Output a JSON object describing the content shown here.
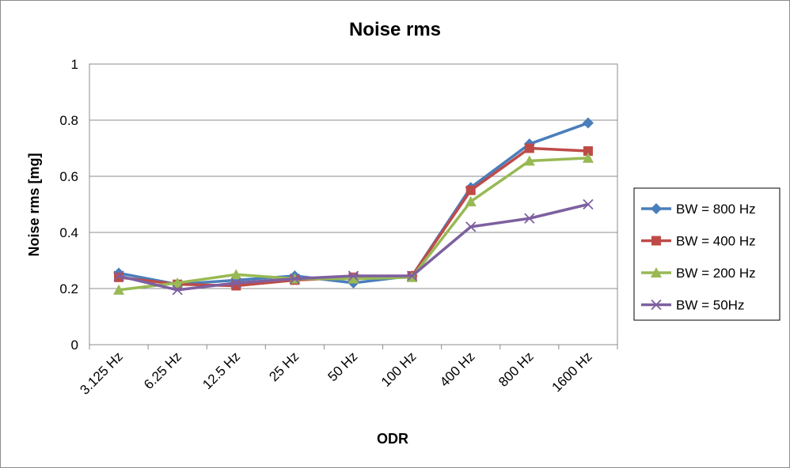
{
  "chart_data": {
    "type": "line",
    "title": "Noise rms",
    "xlabel": "ODR",
    "ylabel": "Noise rms [mg]",
    "ylim": [
      0,
      1
    ],
    "yticks": [
      "0",
      "0.2",
      "0.4",
      "0.6",
      "0.8",
      "1"
    ],
    "categories": [
      "3.125 Hz",
      "6.25 Hz",
      "12.5 Hz",
      "25 Hz",
      "50 Hz",
      "100 Hz",
      "400 Hz",
      "800 Hz",
      "1600 Hz"
    ],
    "grid": "horizontal",
    "legend_position": "right",
    "series": [
      {
        "name": "BW = 800 Hz",
        "color": "#4a7ebb",
        "marker": "diamond",
        "values": [
          0.255,
          0.215,
          0.23,
          0.245,
          0.22,
          0.245,
          0.56,
          0.715,
          0.79
        ]
      },
      {
        "name": "BW = 400 Hz",
        "color": "#be4b48",
        "marker": "square",
        "values": [
          0.24,
          0.215,
          0.21,
          0.23,
          0.24,
          0.245,
          0.55,
          0.7,
          0.69
        ]
      },
      {
        "name": "BW = 200 Hz",
        "color": "#98b954",
        "marker": "triangle",
        "values": [
          0.195,
          0.22,
          0.25,
          0.235,
          0.235,
          0.24,
          0.51,
          0.655,
          0.665
        ]
      },
      {
        "name": "BW = 50Hz",
        "color": "#7d60a0",
        "marker": "x",
        "values": [
          0.245,
          0.195,
          0.22,
          0.235,
          0.245,
          0.245,
          0.42,
          0.45,
          0.5
        ]
      }
    ]
  }
}
